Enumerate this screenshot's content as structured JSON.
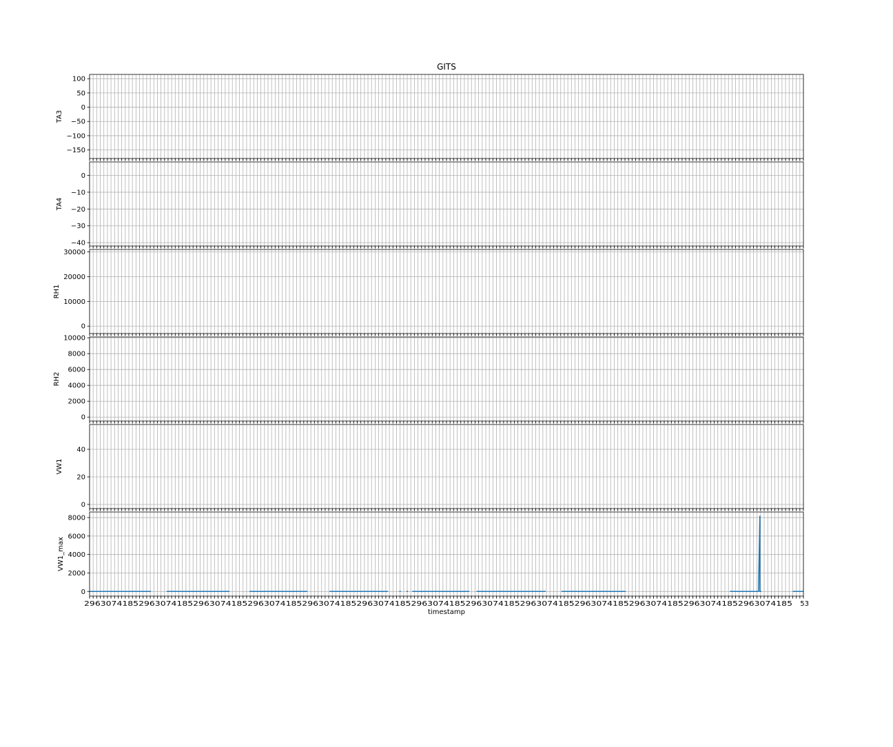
{
  "chart_data": {
    "type": "line",
    "title": "GITS",
    "xlabel": "timestamp",
    "x_tick_labels_last": "53",
    "grid": true,
    "panels": [
      {
        "ylabel": "TA3",
        "ylim": [
          -180,
          115
        ],
        "yticks": [
          100,
          50,
          0,
          -50,
          -100,
          -150
        ],
        "ytick_labels": [
          "100",
          "50",
          "0",
          "−50",
          "−100",
          "−150"
        ]
      },
      {
        "ylabel": "TA4",
        "ylim": [
          -42,
          8
        ],
        "yticks": [
          0,
          -10,
          -20,
          -30,
          -40
        ],
        "ytick_labels": [
          "0",
          "−10",
          "−20",
          "−30",
          "−40"
        ]
      },
      {
        "ylabel": "RH1",
        "ylim": [
          -3000,
          31000
        ],
        "yticks": [
          30000,
          20000,
          10000,
          0
        ],
        "ytick_labels": [
          "30000",
          "20000",
          "10000",
          "0"
        ]
      },
      {
        "ylabel": "RH2",
        "ylim": [
          -500,
          10100
        ],
        "yticks": [
          10000,
          8000,
          6000,
          4000,
          2000,
          0
        ],
        "ytick_labels": [
          "10000",
          "8000",
          "6000",
          "4000",
          "2000",
          "0"
        ]
      },
      {
        "ylabel": "VW1",
        "ylim": [
          -3,
          58
        ],
        "yticks": [
          40,
          20,
          0
        ],
        "ytick_labels": [
          "40",
          "20",
          "0"
        ]
      },
      {
        "ylabel": "VW1_max",
        "ylim": [
          -500,
          8600
        ],
        "yticks": [
          8000,
          6000,
          4000,
          2000,
          0
        ],
        "ytick_labels": [
          "8000",
          "6000",
          "4000",
          "2000",
          "0"
        ],
        "series": [
          {
            "color": "#1f77b4",
            "segments": [
              {
                "x": [
                  0.0,
                  0.062,
                  0.086
                ],
                "y": [
                  5,
                  5,
                  5
                ]
              },
              {
                "x": [
                  0.108,
                  0.196
                ],
                "y": [
                  5,
                  5
                ]
              },
              {
                "x": [
                  0.224,
                  0.305
                ],
                "y": [
                  5,
                  5
                ]
              },
              {
                "x": [
                  0.336,
                  0.418
                ],
                "y": [
                  5,
                  5
                ]
              },
              {
                "x": [
                  0.444,
                  0.446
                ],
                "y": [
                  5,
                  5
                ]
              },
              {
                "x": [
                  0.434,
                  0.436
                ],
                "y": [
                  5,
                  5
                ]
              },
              {
                "x": [
                  0.452,
                  0.532
                ],
                "y": [
                  5,
                  5
                ]
              },
              {
                "x": [
                  0.542,
                  0.639
                ],
                "y": [
                  5,
                  5
                ]
              },
              {
                "x": [
                  0.661,
                  0.703,
                  0.721,
                  0.751
                ],
                "y": [
                  5,
                  5,
                  5,
                  5
                ]
              },
              {
                "x": [
                  0.897,
                  0.937,
                  0.939,
                  0.939,
                  0.941
                ],
                "y": [
                  5,
                  5,
                  8200,
                  5,
                  5
                ]
              },
              {
                "x": [
                  0.985,
                  1.0
                ],
                "y": [
                  5,
                  5
                ]
              }
            ]
          }
        ]
      }
    ]
  }
}
